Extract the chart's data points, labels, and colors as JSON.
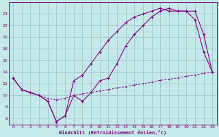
{
  "xlabel": "Windchill (Refroidissement éolien,°C)",
  "background_color": "#c5e8e8",
  "grid_color": "#9dc8cc",
  "line_color": "#800080",
  "xlim": [
    -0.5,
    23.5
  ],
  "ylim": [
    5,
    26
  ],
  "xticks": [
    0,
    1,
    2,
    3,
    4,
    5,
    6,
    7,
    8,
    9,
    10,
    11,
    12,
    13,
    14,
    15,
    16,
    17,
    18,
    19,
    20,
    21,
    22,
    23
  ],
  "yticks": [
    6,
    8,
    10,
    12,
    14,
    16,
    18,
    20,
    22,
    24
  ],
  "line1_x": [
    0,
    1,
    2,
    3,
    4,
    5,
    6,
    7,
    8,
    9,
    10,
    11,
    12,
    13,
    14,
    15,
    16,
    17,
    18,
    19,
    20,
    21,
    22,
    23
  ],
  "line1_y": [
    13.0,
    11.0,
    10.5,
    10.0,
    9.0,
    5.5,
    6.5,
    12.5,
    13.5,
    15.5,
    17.5,
    19.5,
    21.0,
    22.5,
    23.5,
    24.0,
    24.5,
    25.0,
    24.5,
    24.5,
    24.5,
    23.0,
    17.5,
    14.0
  ],
  "line2_x": [
    0,
    1,
    2,
    3,
    4,
    5,
    6,
    7,
    8,
    9,
    10,
    11,
    12,
    13,
    14,
    15,
    16,
    17,
    18,
    19,
    20,
    21,
    22,
    23
  ],
  "line2_y": [
    13.0,
    11.0,
    10.5,
    10.0,
    9.0,
    5.5,
    6.5,
    10.0,
    9.0,
    10.5,
    12.5,
    13.0,
    15.5,
    18.5,
    20.5,
    22.0,
    23.5,
    24.5,
    25.0,
    24.5,
    24.5,
    24.5,
    20.5,
    14.0
  ],
  "line3_x": [
    1,
    2,
    3,
    4,
    5,
    6,
    7,
    8,
    9,
    10,
    11,
    12,
    13,
    14,
    15,
    16,
    17,
    18,
    19,
    20,
    21,
    22,
    23
  ],
  "line3_y": [
    11.0,
    10.5,
    10.0,
    9.5,
    9.2,
    9.5,
    10.0,
    10.3,
    10.5,
    10.8,
    11.0,
    11.3,
    11.5,
    11.8,
    12.0,
    12.3,
    12.6,
    12.8,
    13.0,
    13.3,
    13.5,
    13.8,
    14.0
  ]
}
